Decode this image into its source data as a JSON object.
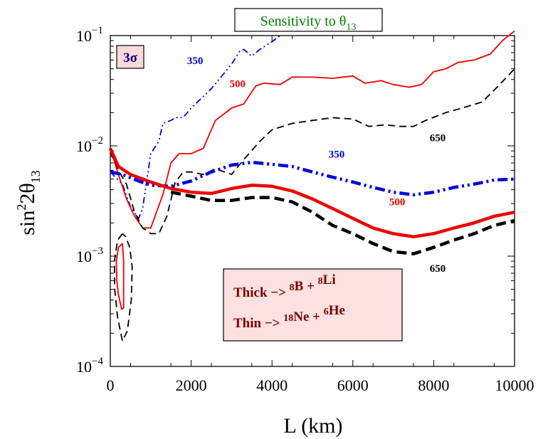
{
  "chart_data": {
    "type": "line",
    "title": "Sensitivity to θ13",
    "xlabel": "L (km)",
    "ylabel": "sin²2θ13",
    "xlim": [
      0,
      10000
    ],
    "ylim": [
      0.0001,
      0.1
    ],
    "yscale": "log",
    "x_ticks": [
      "0",
      "2000",
      "4000",
      "6000",
      "8000",
      "10000"
    ],
    "y_ticks": [
      {
        "base": "10",
        "exp": "−1"
      },
      {
        "base": "10",
        "exp": "−2"
      },
      {
        "base": "10",
        "exp": "−3"
      },
      {
        "base": "10",
        "exp": "−4"
      }
    ],
    "cl_badge": "3σ",
    "legend_lines": [
      {
        "text": "Thick −> ",
        "pre1": "8",
        "el1": "B + ",
        "pre2": "8",
        "el2": "Li"
      },
      {
        "text": "Thin −> ",
        "pre1": "18",
        "el1": "Ne + ",
        "pre2": "6",
        "el2": "He"
      }
    ],
    "colors": {
      "350": "#0000dd",
      "500": "#ee0000",
      "650": "#000000",
      "title": "#008000",
      "legend_text": "#7a0000",
      "legend_bg": "#fde0e0"
    },
    "series": [
      {
        "name": "350",
        "style": "thin",
        "color": "#0000dd",
        "dash": "dash-dot-dot",
        "label_at": [
          1900,
          0.055
        ],
        "points": [
          [
            0,
            0.0058
          ],
          [
            300,
            0.0045
          ],
          [
            500,
            0.0028
          ],
          [
            700,
            0.0022
          ],
          [
            800,
            0.0027
          ],
          [
            1000,
            0.0085
          ],
          [
            1200,
            0.011
          ],
          [
            1300,
            0.016
          ],
          [
            1500,
            0.017
          ],
          [
            1600,
            0.018
          ],
          [
            1800,
            0.018
          ],
          [
            2000,
            0.022
          ],
          [
            2500,
            0.033
          ],
          [
            3000,
            0.055
          ],
          [
            3200,
            0.072
          ],
          [
            3300,
            0.075
          ],
          [
            3500,
            0.065
          ],
          [
            3700,
            0.075
          ],
          [
            4000,
            0.088
          ],
          [
            4200,
            0.1
          ]
        ]
      },
      {
        "name": "500",
        "style": "thin",
        "color": "#ee0000",
        "dash": "solid",
        "label_at": [
          2950,
          0.034
        ],
        "points": [
          [
            0,
            0.0095
          ],
          [
            200,
            0.0055
          ],
          [
            400,
            0.0033
          ],
          [
            600,
            0.0023
          ],
          [
            800,
            0.0018
          ],
          [
            1000,
            0.0018
          ],
          [
            1300,
            0.0036
          ],
          [
            1500,
            0.007
          ],
          [
            1700,
            0.0085
          ],
          [
            2000,
            0.0085
          ],
          [
            2300,
            0.0095
          ],
          [
            2600,
            0.017
          ],
          [
            3000,
            0.022
          ],
          [
            3300,
            0.024
          ],
          [
            3600,
            0.035
          ],
          [
            3800,
            0.037
          ],
          [
            4200,
            0.036
          ],
          [
            4500,
            0.042
          ],
          [
            5000,
            0.042
          ],
          [
            5500,
            0.041
          ],
          [
            6000,
            0.043
          ],
          [
            6300,
            0.037
          ],
          [
            6700,
            0.039
          ],
          [
            7000,
            0.036
          ],
          [
            7400,
            0.034
          ],
          [
            7700,
            0.036
          ],
          [
            8000,
            0.047
          ],
          [
            8300,
            0.05
          ],
          [
            8600,
            0.057
          ],
          [
            9000,
            0.06
          ],
          [
            9400,
            0.068
          ],
          [
            9700,
            0.09
          ],
          [
            10000,
            0.11
          ]
        ]
      },
      {
        "name": "650",
        "style": "thin",
        "color": "#000000",
        "dash": "dashed",
        "label_at": [
          7900,
          0.011
        ],
        "points": [
          [
            0,
            0.0088
          ],
          [
            200,
            0.006
          ],
          [
            400,
            0.0045
          ],
          [
            600,
            0.0025
          ],
          [
            800,
            0.0018
          ],
          [
            1000,
            0.0016
          ],
          [
            1200,
            0.0016
          ],
          [
            1400,
            0.0023
          ],
          [
            1600,
            0.0046
          ],
          [
            1800,
            0.0058
          ],
          [
            2000,
            0.0058
          ],
          [
            2300,
            0.0055
          ],
          [
            2600,
            0.0062
          ],
          [
            3000,
            0.0055
          ],
          [
            3300,
            0.0075
          ],
          [
            3700,
            0.011
          ],
          [
            4000,
            0.014
          ],
          [
            4500,
            0.016
          ],
          [
            5000,
            0.017
          ],
          [
            5500,
            0.018
          ],
          [
            6000,
            0.0175
          ],
          [
            6400,
            0.015
          ],
          [
            6800,
            0.0155
          ],
          [
            7200,
            0.015
          ],
          [
            7500,
            0.015
          ],
          [
            7800,
            0.017
          ],
          [
            8300,
            0.02
          ],
          [
            8700,
            0.022
          ],
          [
            9200,
            0.025
          ],
          [
            9600,
            0.035
          ],
          [
            10000,
            0.05
          ]
        ]
      },
      {
        "name": "350",
        "style": "thick",
        "color": "#0000dd",
        "dash": "dash-dot-dot",
        "label_at": [
          5400,
          0.0078
        ],
        "points": [
          [
            0,
            0.0058
          ],
          [
            300,
            0.0055
          ],
          [
            700,
            0.0048
          ],
          [
            1000,
            0.0044
          ],
          [
            1500,
            0.0043
          ],
          [
            2000,
            0.0048
          ],
          [
            2500,
            0.0058
          ],
          [
            3000,
            0.0067
          ],
          [
            3500,
            0.0071
          ],
          [
            4000,
            0.0068
          ],
          [
            4500,
            0.0065
          ],
          [
            5000,
            0.0058
          ],
          [
            5500,
            0.0052
          ],
          [
            6000,
            0.0047
          ],
          [
            6500,
            0.0042
          ],
          [
            7000,
            0.0038
          ],
          [
            7500,
            0.0036
          ],
          [
            8000,
            0.0038
          ],
          [
            8500,
            0.0042
          ],
          [
            9000,
            0.0045
          ],
          [
            9500,
            0.0049
          ],
          [
            10000,
            0.005
          ]
        ]
      },
      {
        "name": "500",
        "style": "thick",
        "color": "#ee0000",
        "dash": "solid",
        "label_at": [
          6900,
          0.0029
        ],
        "points": [
          [
            0,
            0.0095
          ],
          [
            200,
            0.0065
          ],
          [
            500,
            0.0055
          ],
          [
            1000,
            0.0047
          ],
          [
            1500,
            0.0041
          ],
          [
            2000,
            0.0038
          ],
          [
            2500,
            0.0037
          ],
          [
            3000,
            0.0041
          ],
          [
            3500,
            0.0044
          ],
          [
            4000,
            0.0043
          ],
          [
            4500,
            0.0039
          ],
          [
            5000,
            0.0033
          ],
          [
            5500,
            0.0027
          ],
          [
            6000,
            0.0022
          ],
          [
            6500,
            0.0018
          ],
          [
            7000,
            0.0016
          ],
          [
            7500,
            0.0015
          ],
          [
            8000,
            0.0016
          ],
          [
            8500,
            0.0018
          ],
          [
            9000,
            0.002
          ],
          [
            9500,
            0.0023
          ],
          [
            10000,
            0.0025
          ]
        ]
      },
      {
        "name": "650",
        "style": "thick",
        "color": "#000000",
        "dash": "dashed",
        "label_at": [
          7900,
          0.00072
        ],
        "points": [
          [
            1500,
            0.0038
          ],
          [
            2000,
            0.0035
          ],
          [
            2500,
            0.0032
          ],
          [
            3000,
            0.0032
          ],
          [
            3500,
            0.0034
          ],
          [
            4000,
            0.0034
          ],
          [
            4500,
            0.0031
          ],
          [
            5000,
            0.0025
          ],
          [
            5500,
            0.0019
          ],
          [
            6000,
            0.0016
          ],
          [
            6500,
            0.0013
          ],
          [
            7000,
            0.0011
          ],
          [
            7500,
            0.00105
          ],
          [
            8000,
            0.0012
          ],
          [
            8500,
            0.0014
          ],
          [
            9000,
            0.0016
          ],
          [
            9500,
            0.0019
          ],
          [
            10000,
            0.0021
          ]
        ]
      },
      {
        "name": "500",
        "style": "island",
        "color": "#ee0000",
        "dash": "solid",
        "points": [
          [
            300,
            0.0013
          ],
          [
            200,
            0.0012
          ],
          [
            150,
            0.0009
          ],
          [
            160,
            0.0006
          ],
          [
            200,
            0.00045
          ],
          [
            280,
            0.00033
          ],
          [
            330,
            0.00034
          ],
          [
            330,
            0.0006
          ],
          [
            330,
            0.0009
          ],
          [
            300,
            0.0013
          ]
        ]
      },
      {
        "name": "650",
        "style": "island",
        "color": "#000000",
        "dash": "dashed",
        "points": [
          [
            300,
            0.0016
          ],
          [
            180,
            0.0014
          ],
          [
            100,
            0.0009
          ],
          [
            110,
            0.0005
          ],
          [
            180,
            0.00028
          ],
          [
            300,
            0.00017
          ],
          [
            420,
            0.00021
          ],
          [
            520,
            0.0004
          ],
          [
            540,
            0.0008
          ],
          [
            480,
            0.0012
          ],
          [
            380,
            0.0015
          ],
          [
            300,
            0.0016
          ]
        ]
      }
    ]
  }
}
